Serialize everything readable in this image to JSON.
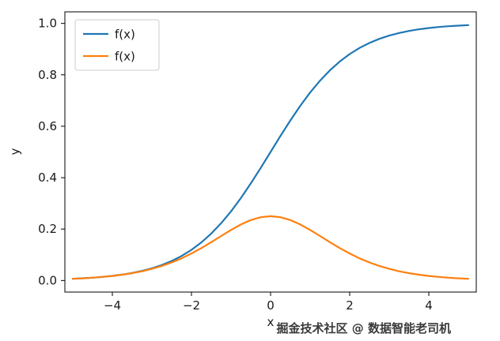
{
  "watermark": "掘金技术社区 @ 数据智能老司机",
  "chart_data": {
    "type": "line",
    "title": "",
    "xlabel": "x",
    "ylabel": "y",
    "xlim": [
      -5.2,
      5.2
    ],
    "ylim": [
      -0.045,
      1.045
    ],
    "grid": false,
    "legend_position": "upper left",
    "xticks": {
      "values": [
        -4,
        -2,
        0,
        2,
        4
      ],
      "labels": [
        "−4",
        "−2",
        "0",
        "2",
        "4"
      ]
    },
    "yticks": {
      "values": [
        0,
        0.2,
        0.4,
        0.6,
        0.8,
        1.0
      ],
      "labels": [
        "0.0",
        "0.2",
        "0.4",
        "0.6",
        "0.8",
        "1.0"
      ]
    },
    "x": [
      -5,
      -4.75,
      -4.5,
      -4.25,
      -4,
      -3.75,
      -3.5,
      -3.25,
      -3,
      -2.75,
      -2.5,
      -2.25,
      -2,
      -1.75,
      -1.5,
      -1.25,
      -1,
      -0.75,
      -0.5,
      -0.25,
      0,
      0.25,
      0.5,
      0.75,
      1,
      1.25,
      1.5,
      1.75,
      2,
      2.25,
      2.5,
      2.75,
      3,
      3.25,
      3.5,
      3.75,
      4,
      4.25,
      4.5,
      4.75,
      5
    ],
    "series": [
      {
        "name": "f(x)",
        "color": "#1f77b4",
        "description": "sigmoid",
        "values": [
          0.0067,
          0.0086,
          0.011,
          0.0141,
          0.018,
          0.023,
          0.0293,
          0.0373,
          0.0474,
          0.0601,
          0.0759,
          0.0953,
          0.1192,
          0.148,
          0.1824,
          0.2227,
          0.2689,
          0.3208,
          0.3775,
          0.4378,
          0.5,
          0.5622,
          0.6225,
          0.6792,
          0.7311,
          0.7773,
          0.8176,
          0.852,
          0.8808,
          0.9047,
          0.9241,
          0.9399,
          0.9526,
          0.9627,
          0.9707,
          0.977,
          0.982,
          0.9859,
          0.989,
          0.9914,
          0.9933
        ]
      },
      {
        "name": "f(x)",
        "color": "#ff7f0e",
        "description": "sigmoid-derivative",
        "values": [
          0.0066,
          0.0085,
          0.0109,
          0.0139,
          0.0177,
          0.0225,
          0.0285,
          0.0359,
          0.0452,
          0.0565,
          0.0701,
          0.0862,
          0.105,
          0.1261,
          0.1491,
          0.1731,
          0.1966,
          0.2179,
          0.235,
          0.2461,
          0.25,
          0.2461,
          0.235,
          0.2179,
          0.1966,
          0.1731,
          0.1491,
          0.1261,
          0.105,
          0.0862,
          0.0701,
          0.0565,
          0.0452,
          0.0359,
          0.0285,
          0.0225,
          0.0177,
          0.0139,
          0.0109,
          0.0085,
          0.0066
        ]
      }
    ]
  }
}
